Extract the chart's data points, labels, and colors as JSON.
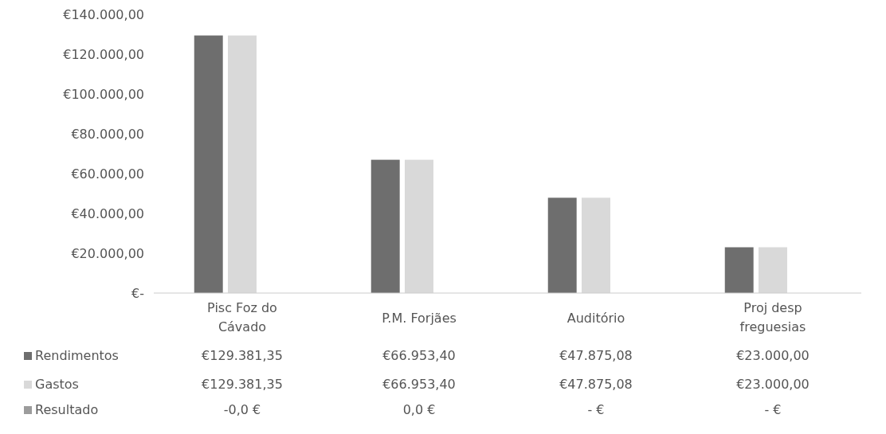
{
  "chart_data": {
    "type": "bar",
    "categories": [
      "Pisc Foz do Cávado",
      "P.M. Forjães",
      "Auditório",
      "Proj desp freguesias"
    ],
    "series": [
      {
        "name": "Rendimentos",
        "color": "#6e6e6e",
        "values": [
          129381.35,
          66953.4,
          47875.08,
          23000.0
        ],
        "value_labels": [
          "€129.381,35",
          "€66.953,40",
          "€47.875,08",
          "€23.000,00"
        ]
      },
      {
        "name": "Gastos",
        "color": "#d9d9d9",
        "values": [
          129381.35,
          66953.4,
          47875.08,
          23000.0
        ],
        "value_labels": [
          "€129.381,35",
          "€66.953,40",
          "€47.875,08",
          "€23.000,00"
        ]
      },
      {
        "name": "Resultado",
        "color": "#9c9c9c",
        "values": [
          0,
          0,
          0,
          0
        ],
        "value_labels": [
          "-0,0 €",
          "0,0 €",
          "-  €",
          "-  €"
        ]
      }
    ],
    "ylim": [
      0,
      140000
    ],
    "yticks": [
      {
        "value": 0,
        "label": "€-"
      },
      {
        "value": 20000,
        "label": "€20.000,00"
      },
      {
        "value": 40000,
        "label": "€40.000,00"
      },
      {
        "value": 60000,
        "label": "€60.000,00"
      },
      {
        "value": 80000,
        "label": "€80.000,00"
      },
      {
        "value": 100000,
        "label": "€100.000,00"
      },
      {
        "value": 120000,
        "label": "€120.000,00"
      },
      {
        "value": 140000,
        "label": "€140.000,00"
      }
    ],
    "legend": "bottom"
  }
}
